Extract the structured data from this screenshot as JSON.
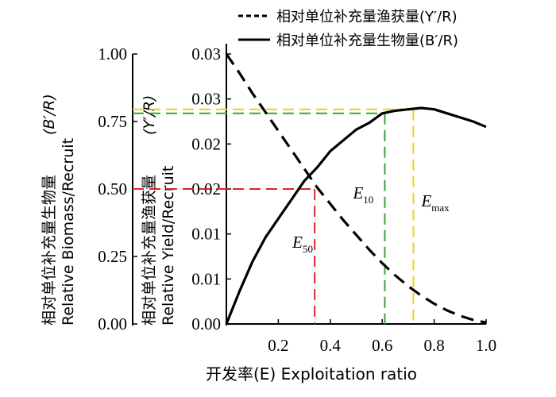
{
  "chart_data": {
    "type": "line",
    "xlabel": "开发率(E) Exploitation ratio",
    "x_ticks": [
      "0.2",
      "0.4",
      "0.6",
      "0.8",
      "1.0"
    ],
    "xlim": [
      0,
      1.0
    ],
    "left_axis": {
      "label_cn": "相对单位补充量生物量",
      "label_en": "Relative Biomass/Recruit",
      "label_en_italic": "(B′/R)",
      "ticks": [
        "1.00",
        "0.75",
        "0.50",
        "0.25",
        "0.00"
      ],
      "highlight_tick": "0.50",
      "highlight_color": "#e0202a",
      "ylim": [
        0,
        1.0
      ]
    },
    "right_axis": {
      "label_cn": "相对单位补充量渔获量",
      "label_en": "Relative Yield/Recruit",
      "label_en_italic": "(Y′/R)",
      "ticks": [
        "0.03",
        "0.03",
        "0.02",
        "0.02",
        "0.01",
        "0.01",
        "0.00"
      ]
    },
    "legend": [
      {
        "label": "相对单位补充量渔获量(Y′/R)",
        "style": "dashed"
      },
      {
        "label": "相对单位补充量生物量(B′/R)",
        "style": "solid"
      }
    ],
    "series": [
      {
        "name": "相对单位补充量渔获量(Y′/R)",
        "style": "dashed",
        "x": [
          0,
          0.05,
          0.1,
          0.15,
          0.2,
          0.25,
          0.3,
          0.35,
          0.4,
          0.45,
          0.5,
          0.55,
          0.6,
          0.65,
          0.7,
          0.75,
          0.8,
          0.85,
          0.9,
          0.95,
          1.0
        ],
        "y": [
          1.0,
          0.93,
          0.855,
          0.785,
          0.715,
          0.645,
          0.575,
          0.505,
          0.445,
          0.385,
          0.33,
          0.275,
          0.225,
          0.18,
          0.14,
          0.105,
          0.075,
          0.05,
          0.03,
          0.015,
          0.005
        ]
      },
      {
        "name": "相对单位补充量生物量(B′/R)",
        "style": "solid",
        "x": [
          0,
          0.05,
          0.1,
          0.15,
          0.2,
          0.25,
          0.3,
          0.35,
          0.4,
          0.45,
          0.5,
          0.55,
          0.6,
          0.65,
          0.7,
          0.75,
          0.8,
          0.85,
          0.9,
          0.95,
          1.0
        ],
        "y": [
          0.0,
          0.12,
          0.23,
          0.32,
          0.39,
          0.46,
          0.53,
          0.58,
          0.64,
          0.68,
          0.72,
          0.745,
          0.78,
          0.79,
          0.795,
          0.8,
          0.795,
          0.78,
          0.765,
          0.75,
          0.73
        ]
      }
    ],
    "reference_points": [
      {
        "label": "E",
        "sub": "50",
        "x": 0.34,
        "y": 0.5,
        "color": "#e0202a"
      },
      {
        "label": "E",
        "sub": "10",
        "x": 0.61,
        "y": 0.78,
        "color": "#3aa335"
      },
      {
        "label": "E",
        "sub": "max",
        "x": 0.72,
        "y": 0.795,
        "color": "#e6d51e"
      }
    ]
  }
}
